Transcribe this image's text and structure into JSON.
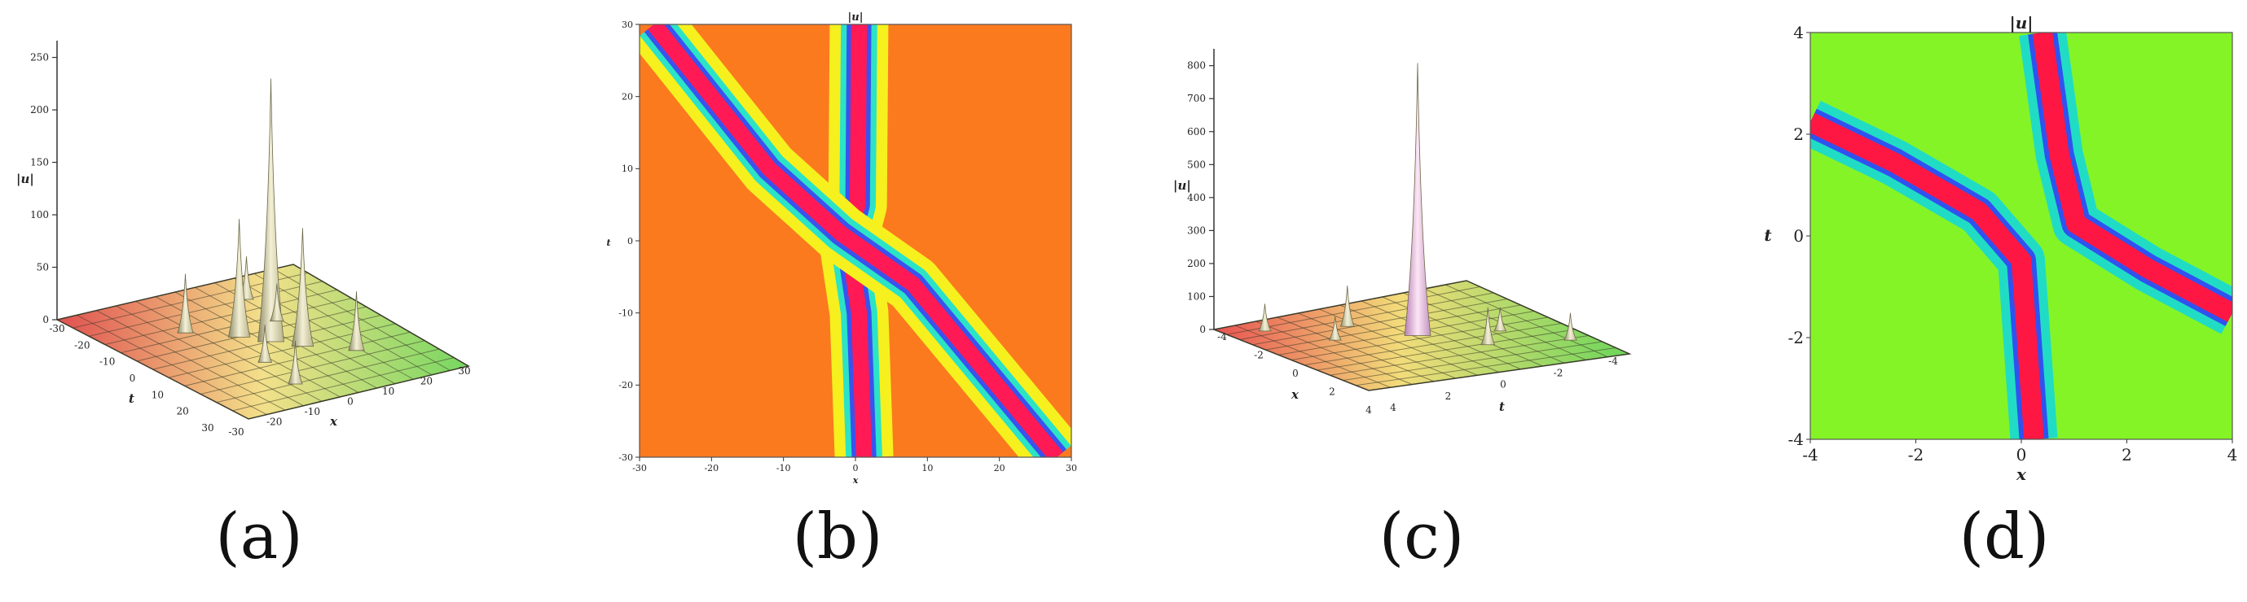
{
  "panel_labels": {
    "a": "(a)",
    "b": "(b)",
    "c": "(c)",
    "d": "(d)"
  },
  "chart_data": [
    {
      "panel": "(a)",
      "type": "surface3d",
      "zlabel": "|u|",
      "xlabel": "x",
      "ylabel": "t",
      "zticks": [
        "0",
        "50",
        "100",
        "150",
        "200",
        "250"
      ],
      "zlim": [
        0,
        250
      ],
      "xticks": [
        "-30",
        "-20",
        "-10",
        "0",
        "10",
        "20",
        "30"
      ],
      "tticks": [
        "-30",
        "-20",
        "-10",
        "0",
        "10",
        "20",
        "30"
      ],
      "peaks": [
        {
          "x": 0,
          "t": 0,
          "value": 245
        },
        {
          "x": -5,
          "t": -4,
          "value": 110
        },
        {
          "x": 5,
          "t": 4,
          "value": 110
        },
        {
          "x": -12,
          "t": -12,
          "value": 55
        },
        {
          "x": 12,
          "t": 12,
          "value": 55
        },
        {
          "x": -20,
          "t": 10,
          "value": 40
        },
        {
          "x": 20,
          "t": -10,
          "value": 40
        },
        {
          "x": -8,
          "t": 8,
          "value": 35
        },
        {
          "x": 8,
          "t": -8,
          "value": 35
        }
      ],
      "colormap": [
        "#e8545a",
        "#f0d878",
        "#7ed96a"
      ]
    },
    {
      "panel": "(b)",
      "type": "heatmap",
      "title": "|u|",
      "xlabel": "x",
      "ylabel": "t",
      "xlim": [
        -30,
        30
      ],
      "ylim": [
        -30,
        30
      ],
      "xticks": [
        "-30",
        "-20",
        "-10",
        "0",
        "10",
        "20",
        "30"
      ],
      "yticks": [
        "-30",
        "-20",
        "-10",
        "0",
        "10",
        "20",
        "30"
      ],
      "background": "#fb7a1e",
      "solitons": [
        {
          "name": "vertical",
          "points": [
            [
              0.5,
              30
            ],
            [
              0.3,
              5
            ],
            [
              -1,
              0
            ],
            [
              0.5,
              -10
            ],
            [
              1.2,
              -30
            ]
          ]
        },
        {
          "name": "diagonal",
          "points": [
            [
              -28,
              30
            ],
            [
              -12,
              10
            ],
            [
              -2,
              1
            ],
            [
              8,
              -6
            ],
            [
              28,
              -30
            ]
          ]
        }
      ]
    },
    {
      "panel": "(c)",
      "type": "surface3d",
      "zlabel": "|u|",
      "xlabel": "x",
      "ylabel": "t",
      "zticks": [
        "0",
        "100",
        "200",
        "300",
        "400",
        "500",
        "600",
        "700",
        "800"
      ],
      "zlim": [
        0,
        800
      ],
      "xticks": [
        "-4",
        "-2",
        "0",
        "2",
        "4"
      ],
      "tticks": [
        "4",
        "2",
        "0",
        "-2",
        "-4"
      ],
      "peaks": [
        {
          "x": 0,
          "t": 0,
          "value": 800
        },
        {
          "x": -2,
          "t": 1,
          "value": 120
        },
        {
          "x": 2,
          "t": -1,
          "value": 110
        },
        {
          "x": -3,
          "t": 3,
          "value": 80
        },
        {
          "x": 3,
          "t": -3,
          "value": 80
        },
        {
          "x": -1,
          "t": 2,
          "value": 70
        },
        {
          "x": 1,
          "t": -2,
          "value": 70
        }
      ],
      "colormap": [
        "#e8545a",
        "#f0d878",
        "#7ed96a"
      ]
    },
    {
      "panel": "(d)",
      "type": "heatmap",
      "title": "|u|",
      "xlabel": "x",
      "ylabel": "t",
      "xlim": [
        -5,
        5
      ],
      "ylim": [
        -5,
        5
      ],
      "xticks": [
        "-4",
        "-2",
        "0",
        "2",
        "4"
      ],
      "yticks": [
        "-4",
        "-2",
        "0",
        "2",
        "4"
      ],
      "background": "#84f427",
      "solitons": [
        {
          "name": "left-arm",
          "points": [
            [
              -5,
              2.8
            ],
            [
              -3,
              1.8
            ],
            [
              -1,
              0.6
            ],
            [
              0,
              -0.6
            ],
            [
              0.3,
              -5
            ]
          ]
        },
        {
          "name": "right-arm",
          "points": [
            [
              0.5,
              5
            ],
            [
              0.9,
              2
            ],
            [
              1.3,
              0.3
            ],
            [
              3,
              -0.8
            ],
            [
              5,
              -1.9
            ]
          ]
        }
      ]
    }
  ]
}
